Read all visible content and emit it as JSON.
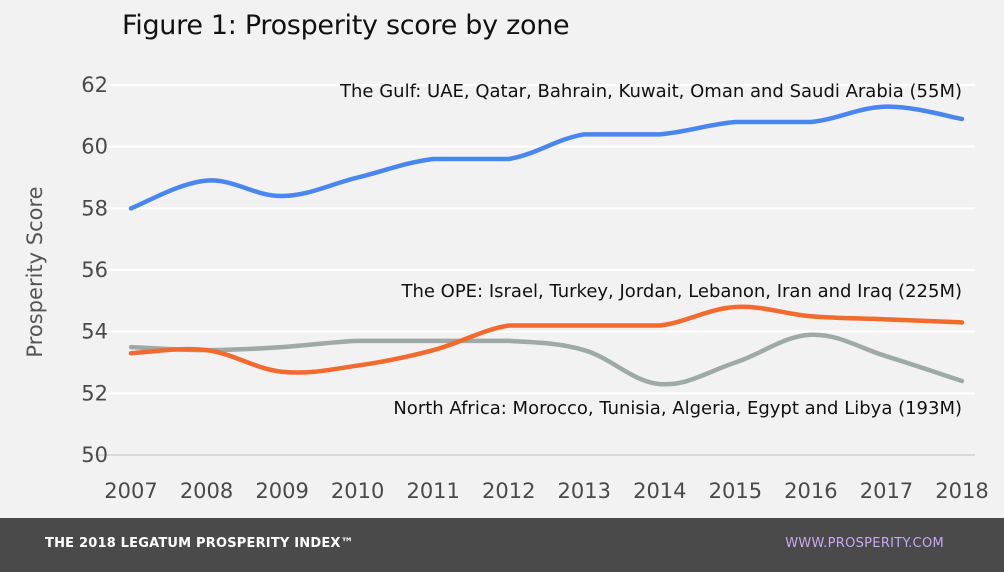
{
  "title": "Figure 1: Prosperity score by zone",
  "footer": {
    "left": "THE 2018 LEGATUM PROSPERITY INDEX™",
    "right": "WWW.PROSPERITY.COM"
  },
  "colors": {
    "gulf": "#4a86f0",
    "ope": "#f26a2e",
    "north_africa": "#9fa9a6",
    "grid": "#ffffff",
    "footer_bg": "#4a4a4a",
    "footer_link": "#c9a8f0"
  },
  "chart_data": {
    "type": "line",
    "title": "Figure 1: Prosperity score by zone",
    "xlabel": "",
    "ylabel": "Prosperity Score",
    "ylim": [
      50,
      62
    ],
    "yticks": [
      50,
      52,
      54,
      56,
      58,
      60,
      62
    ],
    "grid": true,
    "x": [
      "2007",
      "2008",
      "2009",
      "2010",
      "2011",
      "2012",
      "2013",
      "2014",
      "2015",
      "2016",
      "2017",
      "2018"
    ],
    "series": [
      {
        "key": "gulf",
        "name": "The Gulf: UAE, Qatar, Bahrain, Kuwait, Oman and Saudi Arabia (55M)",
        "values": [
          58.0,
          58.9,
          58.4,
          59.0,
          59.6,
          59.6,
          60.4,
          60.4,
          60.8,
          60.8,
          61.3,
          60.9
        ]
      },
      {
        "key": "ope",
        "name": "The OPE: Israel, Turkey, Jordan, Lebanon, Iran and Iraq (225M)",
        "values": [
          53.3,
          53.4,
          52.7,
          52.9,
          53.4,
          54.2,
          54.2,
          54.2,
          54.8,
          54.5,
          54.4,
          54.3
        ]
      },
      {
        "key": "north_africa",
        "name": "North Africa: Morocco, Tunisia, Algeria, Egypt and Libya (193M)",
        "values": [
          53.5,
          53.4,
          53.5,
          53.7,
          53.7,
          53.7,
          53.4,
          52.3,
          53.0,
          53.9,
          53.2,
          52.4
        ]
      }
    ]
  }
}
